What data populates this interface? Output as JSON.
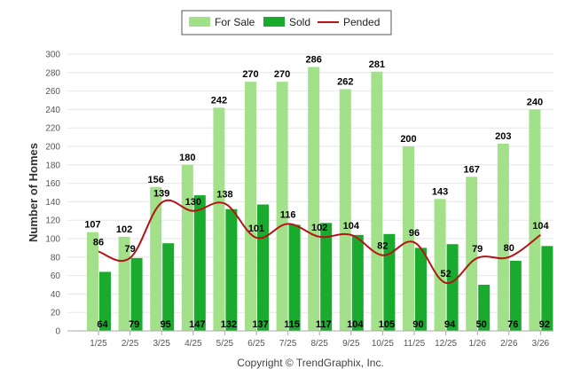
{
  "chart_data": {
    "type": "bar",
    "categories": [
      "1/25",
      "2/25",
      "3/25",
      "4/25",
      "5/25",
      "6/25",
      "7/25",
      "8/25",
      "9/25",
      "10/25",
      "11/25",
      "12/25",
      "1/26",
      "2/26",
      "3/26"
    ],
    "series": [
      {
        "name": "For Sale",
        "type": "bar",
        "color": "#a3e08a",
        "values": [
          107,
          102,
          156,
          180,
          242,
          270,
          270,
          286,
          262,
          281,
          200,
          143,
          167,
          203,
          240
        ]
      },
      {
        "name": "Sold",
        "type": "bar",
        "color": "#1aaa2e",
        "values": [
          64,
          79,
          95,
          147,
          132,
          137,
          115,
          117,
          104,
          105,
          90,
          94,
          50,
          76,
          92
        ]
      },
      {
        "name": "Pended",
        "type": "line",
        "color": "#b41414",
        "values": [
          86,
          79,
          139,
          130,
          138,
          101,
          116,
          102,
          104,
          82,
          96,
          52,
          79,
          80,
          104
        ]
      }
    ],
    "title": "",
    "xlabel": "",
    "ylabel": "Number of Homes",
    "ylim": [
      0,
      300
    ],
    "yticks": [
      0,
      20,
      40,
      60,
      80,
      100,
      120,
      140,
      160,
      180,
      200,
      220,
      240,
      260,
      280,
      300
    ],
    "grid": true,
    "legend_position": "top-center"
  },
  "footer": "Copyright © TrendGraphix, Inc."
}
